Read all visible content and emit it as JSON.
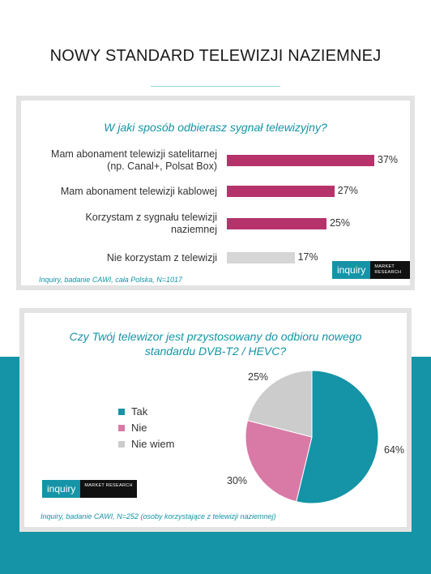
{
  "header": {
    "title": "NOWY STANDARD TELEWIZJI NAZIEMNEJ"
  },
  "colors": {
    "teal": "#1494a6",
    "magenta": "#b5336a",
    "pink": "#d97aa6",
    "grey": "#cccccc",
    "light_grey": "#d6d6d6"
  },
  "card1": {
    "question": "W jaki sposób odbierasz sygnał telewizyjny?",
    "source": "Inquiry, badanie CAWI, cała Polska, N=1017",
    "logo": {
      "brand": "inquiry",
      "sub": "MARKET RESEARCH"
    }
  },
  "card2": {
    "question_line1": "Czy Twój telewizor jest przystosowany do odbioru nowego",
    "question_line2": "standardu DVB-T2 / HEVC?",
    "source": "Inquiry, badanie CAWI, N=252 (osoby korzystające z telewizji naziemnej)",
    "logo": {
      "brand": "inquiry",
      "sub": "MARKET RESEARCH"
    }
  },
  "chart_data": [
    {
      "type": "bar",
      "orientation": "horizontal",
      "title": "W jaki sposób odbierasz sygnał telewizyjny?",
      "categories": [
        [
          "Mam abonament telewizji satelitarnej",
          "(np. Canal+,  Polsat Box)"
        ],
        [
          "Mam abonament telewizji kablowej"
        ],
        [
          "Korzystam z sygnału telewizji",
          "naziemnej"
        ],
        [
          "Nie korzystam z telewizji"
        ]
      ],
      "values": [
        37,
        27,
        25,
        17
      ],
      "value_labels": [
        "37%",
        "27%",
        "25%",
        "17%"
      ],
      "bar_colors": [
        "#b5336a",
        "#b5336a",
        "#b5336a",
        "#d6d6d6"
      ],
      "xlim": [
        0,
        37
      ]
    },
    {
      "type": "pie",
      "title": "Czy Twój telewizor jest przystosowany do odbioru nowego standardu DVB-T2 / HEVC?",
      "labels": [
        "Tak",
        "Nie",
        "Nie wiem"
      ],
      "values": [
        64,
        30,
        25
      ],
      "value_labels": [
        "64%",
        "30%",
        "25%"
      ],
      "colors": [
        "#1494a6",
        "#d97aa6",
        "#cccccc"
      ],
      "legend_position": "left"
    }
  ]
}
